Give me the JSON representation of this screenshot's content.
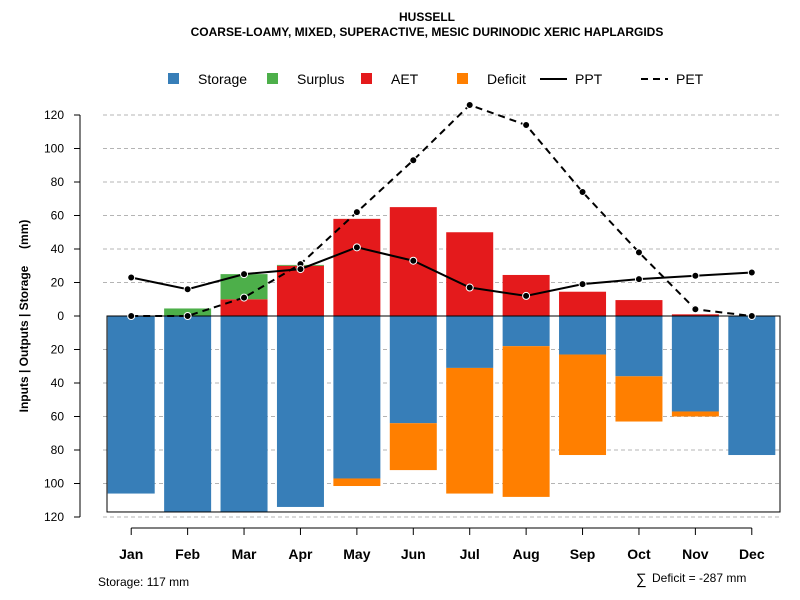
{
  "chart_data": {
    "type": "bar",
    "title": "HUSSELL",
    "subtitle": "COARSE-LOAMY, MIXED, SUPERACTIVE, MESIC DURINODIC XERIC HAPLARGIDS",
    "ylabel": "Inputs | Outputs | Storage     (mm)",
    "categories": [
      "Jan",
      "Feb",
      "Mar",
      "Apr",
      "May",
      "Jun",
      "Jul",
      "Aug",
      "Sep",
      "Oct",
      "Nov",
      "Dec"
    ],
    "ylim": [
      -120,
      130
    ],
    "yticks": [
      120,
      100,
      80,
      60,
      40,
      20,
      0,
      -20,
      -40,
      -60,
      -80,
      -100,
      -120
    ],
    "ytick_labels": [
      "120",
      "100",
      "80",
      "60",
      "40",
      "20",
      "0",
      "20",
      "40",
      "60",
      "80",
      "100",
      "120"
    ],
    "legend": {
      "position": "top",
      "entries": [
        {
          "label": "Storage",
          "kind": "box",
          "color": "#377EB8"
        },
        {
          "label": "Surplus",
          "kind": "box",
          "color": "#4DAF4A"
        },
        {
          "label": "AET",
          "kind": "box",
          "color": "#E41A1C"
        },
        {
          "label": "Deficit",
          "kind": "box",
          "color": "#FF7F00"
        },
        {
          "label": "PPT",
          "kind": "solid-line",
          "color": "#000000"
        },
        {
          "label": "PET",
          "kind": "dashed-line",
          "color": "#000000"
        }
      ]
    },
    "series": [
      {
        "name": "Storage",
        "color": "#377EB8",
        "values": [
          -106,
          -117,
          -117,
          -114,
          -97,
          -64,
          -31,
          -18,
          -23,
          -36,
          -57,
          -83
        ]
      },
      {
        "name": "Deficit",
        "color": "#FF7F00",
        "values": [
          0,
          0,
          0,
          0,
          -4.5,
          -28,
          -75,
          -90,
          -60,
          -27,
          -3,
          0
        ]
      },
      {
        "name": "AET",
        "color": "#E41A1C",
        "values": [
          0,
          0,
          10,
          30,
          58,
          65,
          50,
          24.5,
          14.5,
          9.5,
          1,
          0
        ]
      },
      {
        "name": "Surplus",
        "color": "#4DAF4A",
        "values": [
          0,
          4.5,
          15,
          0.5,
          0,
          0,
          0,
          0,
          0,
          0,
          0,
          0
        ]
      },
      {
        "name": "PPT",
        "color": "#000000",
        "values": [
          23,
          16,
          25,
          28,
          41,
          33,
          17,
          12,
          19,
          22,
          24,
          26
        ]
      },
      {
        "name": "PET",
        "color": "#000000",
        "values": [
          0,
          0,
          11,
          31,
          62,
          93,
          126,
          114,
          74,
          38,
          4,
          0
        ]
      }
    ],
    "storage_capacity": 117,
    "footer_left": "Storage: 117 mm",
    "footer_right_symbol": "∑",
    "footer_right": "Deficit = -287 mm"
  }
}
